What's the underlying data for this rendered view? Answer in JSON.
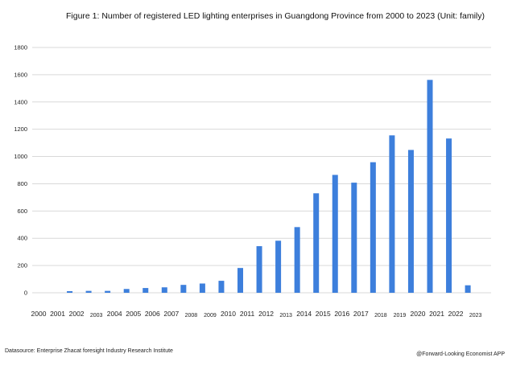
{
  "chart_data": {
    "type": "bar",
    "title": "Figure 1: Number of registered LED lighting enterprises in Guangdong Province from 2000 to 2023 (Unit: family)",
    "categories": [
      "2000",
      "2001",
      "2002",
      "2003",
      "2004",
      "2005",
      "2006",
      "2007",
      "2008",
      "2009",
      "2010",
      "2011",
      "2012",
      "2013",
      "2014",
      "2015",
      "2016",
      "2017",
      "2018",
      "2019",
      "2020",
      "2021",
      "2022",
      "2023"
    ],
    "values": [
      0,
      12,
      14,
      14,
      28,
      35,
      40,
      58,
      68,
      88,
      182,
      342,
      382,
      482,
      730,
      865,
      808,
      958,
      1155,
      1048,
      1562,
      1132,
      55,
      0
    ],
    "y_ticks": [
      0,
      200,
      400,
      600,
      800,
      1000,
      1200,
      1400,
      1600,
      1800
    ],
    "ylim": [
      0,
      1800
    ],
    "grid": true,
    "xlabel": "",
    "ylabel": "",
    "bar_color": "#3d7fdc"
  },
  "footer": {
    "source": "Datasource: Enterprise Zhacat foresight Industry Research Institute",
    "credit": "@Forward-Looking Economist APP"
  }
}
